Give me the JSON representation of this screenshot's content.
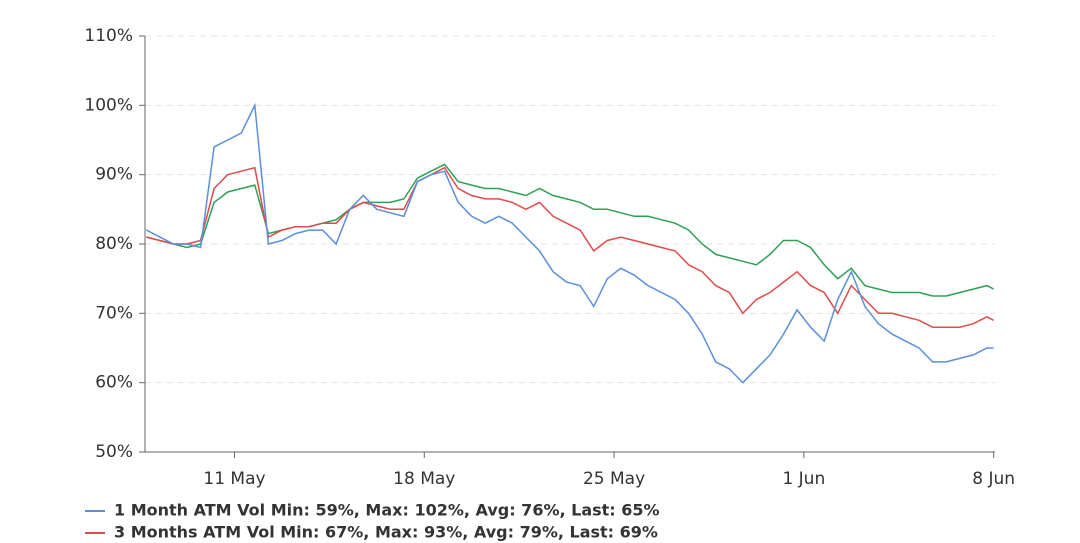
{
  "chart_data": {
    "type": "line",
    "x": [
      7.75,
      8.25,
      8.75,
      9.25,
      9.75,
      10.25,
      10.75,
      11.25,
      11.75,
      12.25,
      12.75,
      13.25,
      13.75,
      14.25,
      14.75,
      15.25,
      15.75,
      16.25,
      16.75,
      17.25,
      17.75,
      18.25,
      18.75,
      19.25,
      19.75,
      20.25,
      20.75,
      21.25,
      21.75,
      22.25,
      22.75,
      23.25,
      23.75,
      24.25,
      24.75,
      25.25,
      25.75,
      26.25,
      26.75,
      27.25,
      27.75,
      28.25,
      28.75,
      29.25,
      29.75,
      30.25,
      30.75,
      31.25,
      31.75,
      32.25,
      32.75,
      33.25,
      33.75,
      34.25,
      34.75,
      35.25,
      35.75,
      36.25,
      36.75,
      37.25,
      37.75,
      38.25,
      38.75,
      39.0
    ],
    "series": [
      {
        "name": "1 Month ATM Vol Min: 59%, Max: 102%, Avg: 76%, Last: 65%",
        "color": "#5b8fd9",
        "values": [
          82,
          81,
          80,
          80,
          79.5,
          94,
          95,
          96,
          100,
          80,
          80.5,
          81.5,
          82,
          82,
          80,
          85,
          87,
          85,
          84.5,
          84,
          89,
          90,
          90.5,
          86,
          84,
          83,
          84,
          83,
          81,
          79,
          76,
          74.5,
          74,
          71,
          75,
          76.5,
          75.5,
          74,
          73,
          72,
          70,
          67,
          63,
          62,
          60,
          62,
          64,
          67,
          70.5,
          68,
          66,
          72,
          76,
          71,
          68.5,
          67,
          66,
          65,
          63,
          63,
          63.5,
          64,
          65,
          65
        ]
      },
      {
        "name": "3 Months ATM Vol Min: 67%, Max: 93%, Avg: 79%, Last: 69%",
        "color": "#e04b4b",
        "values": [
          81,
          80.5,
          80,
          80,
          80.5,
          88,
          90,
          90.5,
          91,
          81,
          82,
          82.5,
          82.5,
          83,
          83,
          85,
          86,
          85.5,
          85,
          85,
          89,
          90,
          91,
          88,
          87,
          86.5,
          86.5,
          86,
          85,
          86,
          84,
          83,
          82,
          79,
          80.5,
          81,
          80.5,
          80,
          79.5,
          79,
          77,
          76,
          74,
          73,
          70,
          72,
          73,
          74.5,
          76,
          74,
          73,
          70,
          74,
          72,
          70,
          70,
          69.5,
          69,
          68,
          68,
          68,
          68.5,
          69.5,
          69
        ]
      },
      {
        "color": "#2ea055",
        "values": [
          81,
          80.5,
          80,
          79.5,
          80,
          86,
          87.5,
          88,
          88.5,
          81.5,
          82,
          82.5,
          82.5,
          83,
          83.5,
          85,
          86,
          86,
          86,
          86.5,
          89.5,
          90.5,
          91.5,
          89,
          88.5,
          88,
          88,
          87.5,
          87,
          88,
          87,
          86.5,
          86,
          85,
          85,
          84.5,
          84,
          84,
          83.5,
          83,
          82,
          80,
          78.5,
          78,
          77.5,
          77,
          78.5,
          80.5,
          80.5,
          79.5,
          77,
          75,
          76.5,
          74,
          73.5,
          73,
          73,
          73,
          72.5,
          72.5,
          73,
          73.5,
          74,
          73.5
        ]
      }
    ],
    "xlim": [
      7.7,
      39.05
    ],
    "xticks": [
      {
        "value": 11,
        "label": "11 May"
      },
      {
        "value": 18,
        "label": "18 May"
      },
      {
        "value": 25,
        "label": "25 May"
      },
      {
        "value": 32,
        "label": "1 Jun"
      },
      {
        "value": 39,
        "label": "8 Jun"
      }
    ],
    "ylim": [
      50,
      110
    ],
    "yticks": [
      {
        "value": 50,
        "label": "50%"
      },
      {
        "value": 60,
        "label": "60%"
      },
      {
        "value": 70,
        "label": "70%"
      },
      {
        "value": 80,
        "label": "80%"
      },
      {
        "value": 90,
        "label": "90%"
      },
      {
        "value": 100,
        "label": "100%"
      },
      {
        "value": 110,
        "label": "110%"
      }
    ],
    "grid": true
  }
}
